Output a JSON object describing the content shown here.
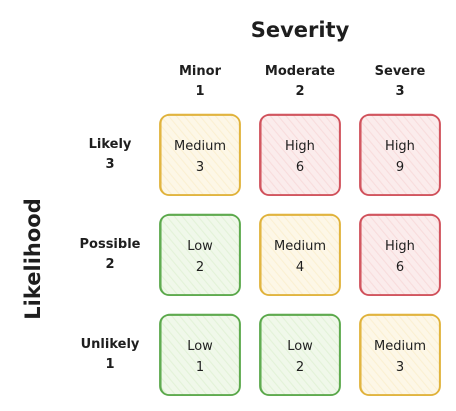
{
  "x_axis": {
    "title": "Severity"
  },
  "y_axis": {
    "title": "Likelihood"
  },
  "columns": [
    {
      "name": "Minor",
      "value": "1"
    },
    {
      "name": "Moderate",
      "value": "2"
    },
    {
      "name": "Severe",
      "value": "3"
    }
  ],
  "rows": [
    {
      "name": "Likely",
      "value": "3"
    },
    {
      "name": "Possible",
      "value": "2"
    },
    {
      "name": "Unlikely",
      "value": "1"
    }
  ],
  "cells": [
    [
      {
        "label": "Medium",
        "score": "3",
        "level": "medium"
      },
      {
        "label": "High",
        "score": "6",
        "level": "high"
      },
      {
        "label": "High",
        "score": "9",
        "level": "high"
      }
    ],
    [
      {
        "label": "Low",
        "score": "2",
        "level": "low"
      },
      {
        "label": "Medium",
        "score": "4",
        "level": "medium"
      },
      {
        "label": "High",
        "score": "6",
        "level": "high"
      }
    ],
    [
      {
        "label": "Low",
        "score": "1",
        "level": "low"
      },
      {
        "label": "Low",
        "score": "2",
        "level": "low"
      },
      {
        "label": "Medium",
        "score": "3",
        "level": "medium"
      }
    ]
  ],
  "colors": {
    "low": {
      "stroke": "#5aa84a",
      "fill": "#e3f2d8"
    },
    "medium": {
      "stroke": "#e0b23a",
      "fill": "#fbf0d2"
    },
    "high": {
      "stroke": "#d0505a",
      "fill": "#f8dcdc"
    }
  }
}
